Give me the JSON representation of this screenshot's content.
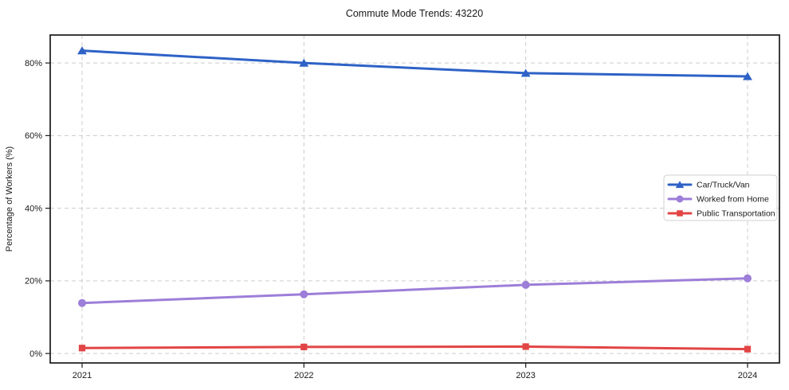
{
  "title": "Commute Mode Trends: 43220",
  "colors": {
    "car_truck_van": "#2e62c6",
    "worked_from_home": "#9d7ed8",
    "public_transportation": "#e24545",
    "grid": "#cccccc",
    "spine": "#1a1a1a",
    "text": "#1a1a1a",
    "legend_border": "#d0d0d0",
    "legend_bg": "#ffffff"
  },
  "chart_data": {
    "type": "line",
    "title": "Commute Mode Trends: 43220",
    "xlabel": "",
    "ylabel": "Percentage of Workers (%)",
    "x": [
      2021,
      2022,
      2023,
      2024
    ],
    "x_tick_labels": [
      "2021",
      "2022",
      "2023",
      "2024"
    ],
    "y_ticks": [
      0,
      20,
      40,
      60,
      80
    ],
    "y_tick_labels": [
      "0%",
      "20%",
      "40%",
      "60%",
      "80%"
    ],
    "ylim": [
      -2.6,
      87.7
    ],
    "grid": true,
    "grid_style": "dashed",
    "legend_position": "center right",
    "legend_entries": [
      "Car/Truck/Van",
      "Worked from Home",
      "Public Transportation"
    ],
    "series": [
      {
        "name": "Car/Truck/Van",
        "marker": "triangle",
        "color": "#2e62c6",
        "values": [
          83.4,
          80.0,
          77.2,
          76.3
        ]
      },
      {
        "name": "Worked from Home",
        "marker": "circle",
        "color": "#9d7ed8",
        "values": [
          13.9,
          16.3,
          18.9,
          20.7
        ]
      },
      {
        "name": "Public Transportation",
        "marker": "square",
        "color": "#e24545",
        "values": [
          1.5,
          1.8,
          1.9,
          1.2
        ]
      }
    ]
  }
}
